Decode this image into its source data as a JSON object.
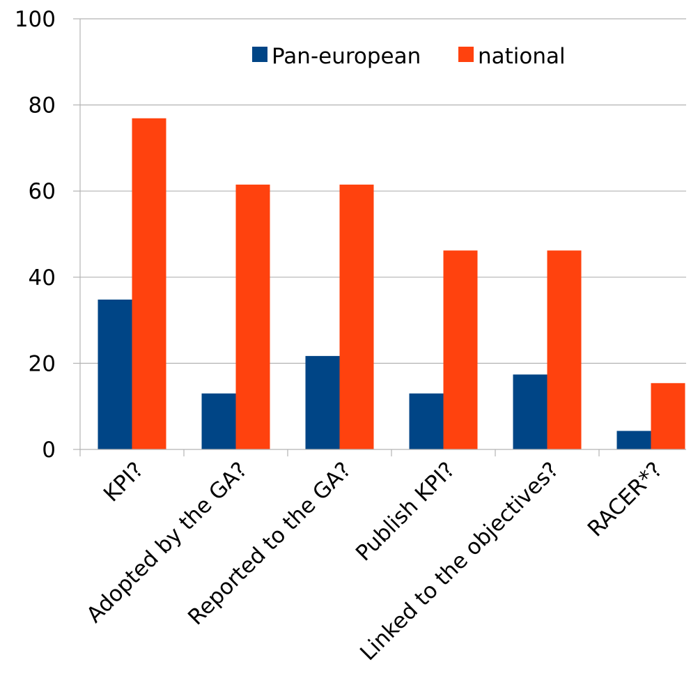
{
  "chart_data": {
    "type": "bar",
    "categories": [
      "KPI?",
      "Adopted by the GA?",
      "Reported to the GA?",
      "Publish KPI?",
      "Linked to the objectives?",
      "RACER*?"
    ],
    "series": [
      {
        "name": "Pan-european",
        "values": [
          34.8,
          13.0,
          21.7,
          13.0,
          17.4,
          4.3
        ],
        "color": "#004586"
      },
      {
        "name": "national",
        "values": [
          76.9,
          61.5,
          61.5,
          46.2,
          46.2,
          15.4
        ],
        "color": "#ff420e"
      }
    ],
    "ylim": [
      0,
      100
    ],
    "yticks": [
      "0",
      "20",
      "40",
      "60",
      "80",
      "100"
    ],
    "grid": true,
    "legend": "top-center",
    "title": "",
    "xlabel": "",
    "ylabel": ""
  }
}
